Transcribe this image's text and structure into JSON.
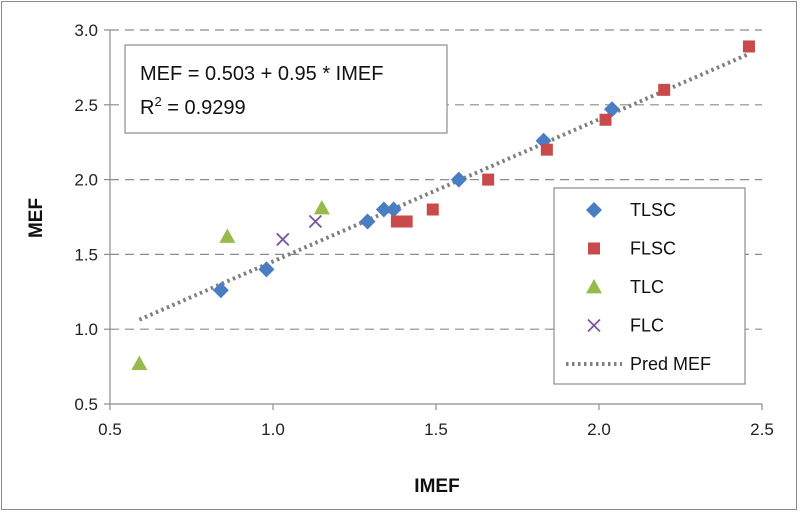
{
  "chart_data": {
    "type": "scatter",
    "xlabel": "IMEF",
    "ylabel": "MEF",
    "xlim": [
      0.5,
      2.5
    ],
    "ylim": [
      0.5,
      3.0
    ],
    "xticks": [
      "0.5",
      "1.0",
      "1.5",
      "2.0",
      "2.5"
    ],
    "yticks": [
      "0.5",
      "1.0",
      "1.5",
      "2.0",
      "2.5",
      "3.0"
    ],
    "grid": "horizontal-dashed",
    "legend_position": "right",
    "annotation": {
      "equation": "MEF = 0.503 + 0.95 * IMEF",
      "r2_prefix": "R",
      "r2_sup": "2",
      "r2_value": " = 0.9299"
    },
    "series": [
      {
        "name": "TLSC",
        "marker": "diamond",
        "color": "#4a7ec3",
        "x": [
          0.84,
          0.98,
          1.29,
          1.34,
          1.37,
          1.57,
          1.83,
          2.04
        ],
        "y": [
          1.26,
          1.4,
          1.72,
          1.8,
          1.8,
          2.0,
          2.26,
          2.47
        ]
      },
      {
        "name": "FLSC",
        "marker": "square",
        "color": "#c94a4a",
        "x": [
          1.38,
          1.41,
          1.49,
          1.66,
          1.84,
          2.02,
          2.2,
          2.46
        ],
        "y": [
          1.72,
          1.72,
          1.8,
          2.0,
          2.2,
          2.4,
          2.6,
          2.89
        ]
      },
      {
        "name": "TLC",
        "marker": "triangle",
        "color": "#96bb4b",
        "x": [
          0.59,
          0.86,
          1.15
        ],
        "y": [
          0.77,
          1.62,
          1.81
        ]
      },
      {
        "name": "FLC",
        "marker": "x",
        "color": "#7b559e",
        "x": [
          1.03,
          1.13
        ],
        "y": [
          1.6,
          1.72
        ]
      },
      {
        "name": "Pred MEF",
        "marker": "dotted-line",
        "color": "#7f7f7f",
        "intercept": 0.503,
        "slope": 0.95,
        "x_range": [
          0.59,
          2.46
        ]
      }
    ]
  }
}
